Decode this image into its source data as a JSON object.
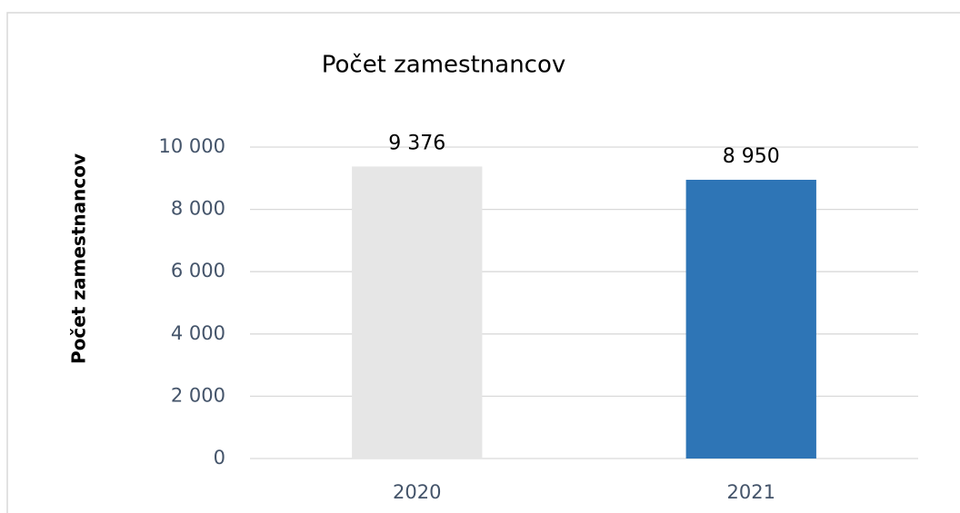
{
  "chart_data": {
    "type": "bar",
    "title": "Počet zamestnancov",
    "y_label": "Počet zamestnancov",
    "categories": [
      "2020",
      "2021"
    ],
    "values": [
      9376,
      8950
    ],
    "value_labels": [
      "9 376",
      "8 950"
    ],
    "colors": [
      "#e6e6e6",
      "#2e75b6"
    ],
    "ylim": [
      0,
      10000
    ],
    "yticks": [
      0,
      {
        "value": 2000,
        "label": "2 000"
      },
      {
        "value": 4000,
        "label": "4 000"
      },
      {
        "value": 6000,
        "label": "6 000"
      },
      {
        "value": 8000,
        "label": "8 000"
      },
      {
        "value": 10000,
        "label": "10 000"
      }
    ],
    "grid": true
  }
}
